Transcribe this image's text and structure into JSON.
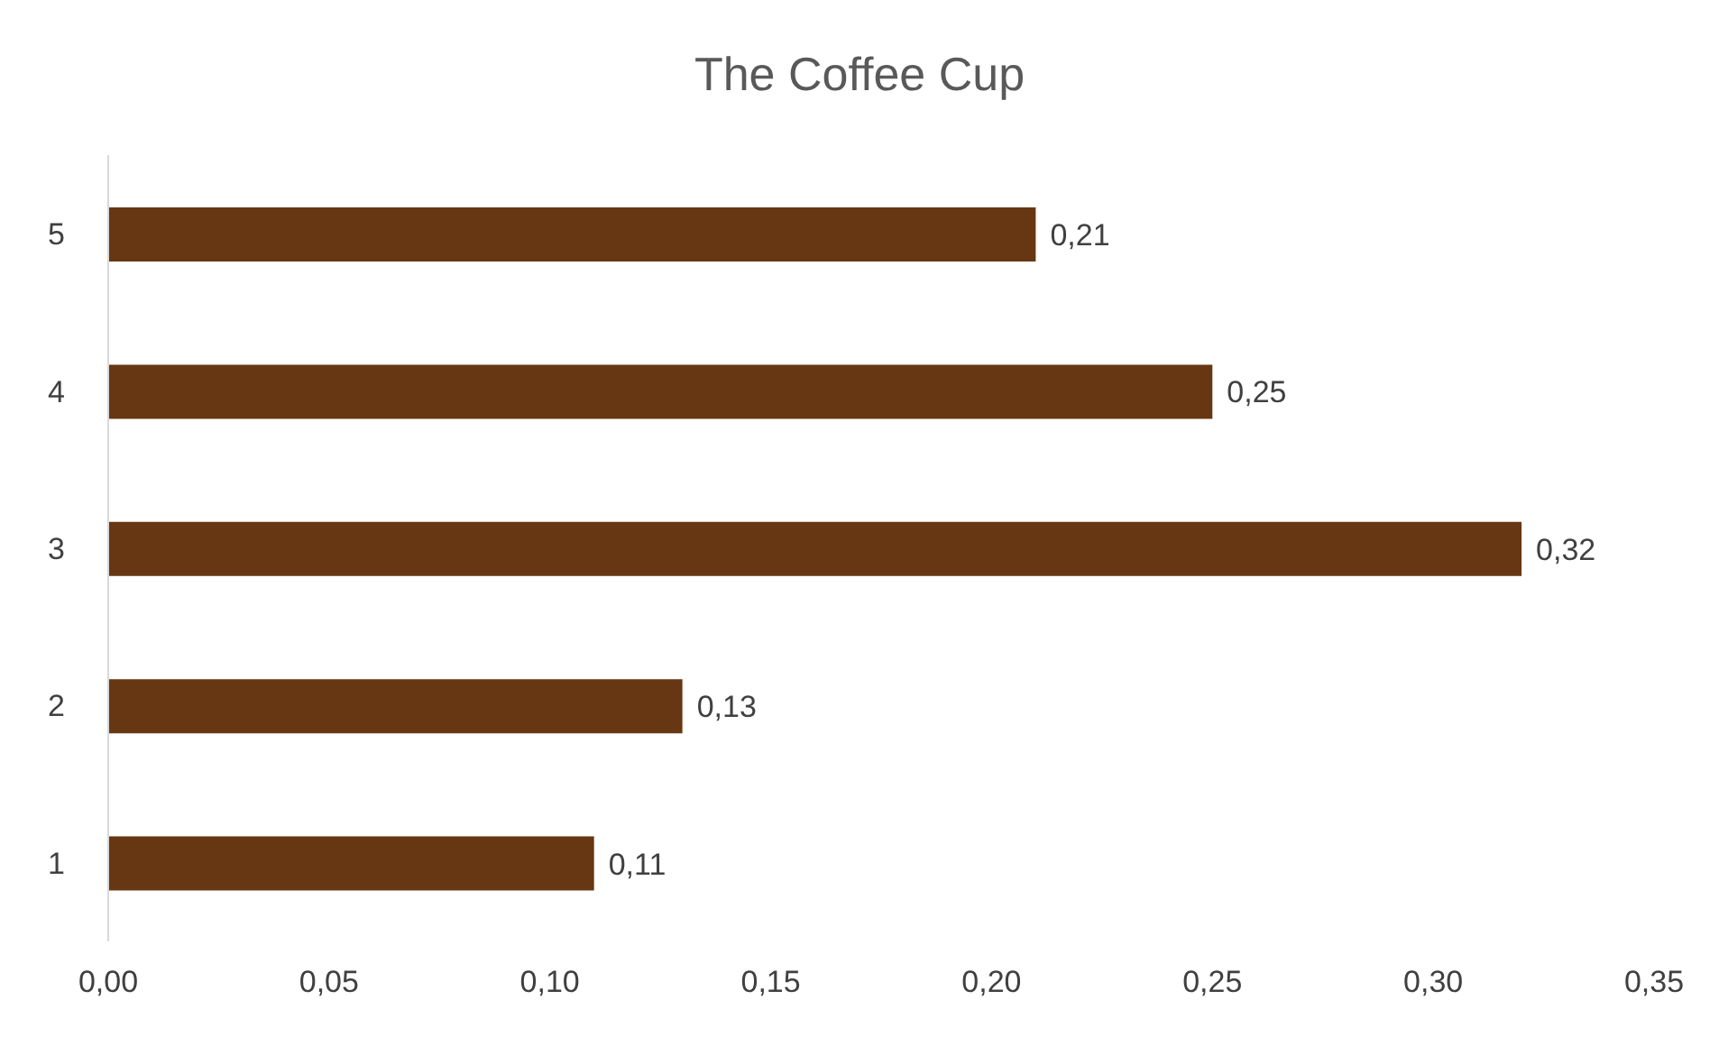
{
  "chart_data": {
    "type": "bar",
    "orientation": "horizontal",
    "title": "The Coffee Cup",
    "categories": [
      "5",
      "4",
      "3",
      "2",
      "1"
    ],
    "values": [
      0.21,
      0.25,
      0.32,
      0.13,
      0.11
    ],
    "value_labels": [
      "0,21",
      "0,25",
      "0,32",
      "0,13",
      "0,11"
    ],
    "color": "#663712",
    "xlim": [
      0,
      0.35
    ],
    "xticks": [
      {
        "value": 0,
        "label": "0,00"
      },
      {
        "value": 0.05,
        "label": "0,05"
      },
      {
        "value": 0.1,
        "label": "0,10"
      },
      {
        "value": 0.15,
        "label": "0,15"
      },
      {
        "value": 0.2,
        "label": "0,20"
      },
      {
        "value": 0.25,
        "label": "0,25"
      },
      {
        "value": 0.3,
        "label": "0,30"
      },
      {
        "value": 0.35,
        "label": "0,35"
      }
    ],
    "grid": false,
    "legend": false
  }
}
